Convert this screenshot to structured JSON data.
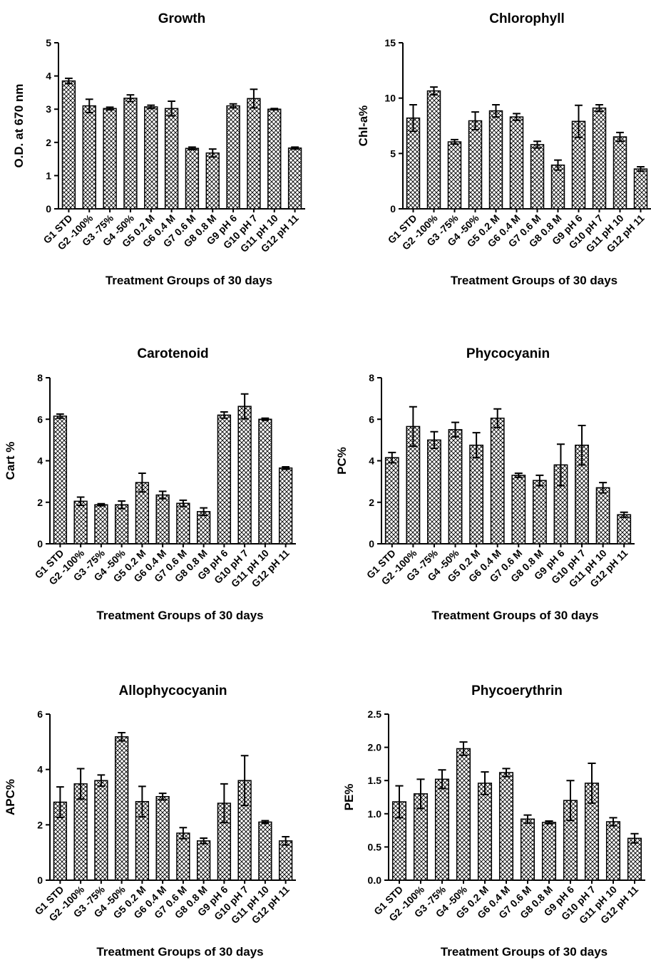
{
  "chart_data": [
    {
      "type": "bar",
      "title": "Growth",
      "xlabel": "Treatment Groups of 30 days",
      "ylabel": "O.D. at 670 nm",
      "ylim": [
        0,
        5
      ],
      "yticks": [
        "0",
        "1",
        "2",
        "3",
        "4",
        "5"
      ],
      "categories": [
        "G1 STD",
        "G2 -100%",
        "G3 -75%",
        "G4 -50%",
        "G5 0.2 M",
        "G6 0.4 M",
        "G7 0.6 M",
        "G8 0.8 M",
        "G9 pH 6",
        "G10 pH 7",
        "G11 pH 10",
        "G12 pH 11"
      ],
      "values": [
        3.85,
        3.1,
        3.02,
        3.33,
        3.07,
        3.02,
        1.82,
        1.68,
        3.1,
        3.32,
        3.0,
        1.83
      ],
      "errors": [
        0.08,
        0.2,
        0.04,
        0.1,
        0.05,
        0.22,
        0.04,
        0.12,
        0.06,
        0.28,
        0.02,
        0.03
      ]
    },
    {
      "type": "bar",
      "title": "Chlorophyll",
      "xlabel": "Treatment Groups of 30 days",
      "ylabel": "Chl-a%",
      "ylim": [
        0,
        15
      ],
      "yticks": [
        "0",
        "5",
        "10",
        "15"
      ],
      "categories": [
        "G1 STD",
        "G2 -100%",
        "G3 -75%",
        "G4 -50%",
        "G5 0.2 M",
        "G6 0.4 M",
        "G7 0.6 M",
        "G8 0.8 M",
        "G9 pH 6",
        "G10 pH 7",
        "G11 pH 10",
        "G12 pH 11"
      ],
      "values": [
        8.2,
        10.65,
        6.05,
        7.95,
        8.85,
        8.3,
        5.8,
        3.95,
        7.9,
        9.1,
        6.5,
        3.6
      ],
      "errors": [
        1.2,
        0.35,
        0.2,
        0.8,
        0.55,
        0.3,
        0.3,
        0.45,
        1.45,
        0.3,
        0.4,
        0.2
      ]
    },
    {
      "type": "bar",
      "title": "Carotenoid",
      "xlabel": "Treatment Groups of 30 days",
      "ylabel": "Cart %",
      "ylim": [
        0,
        8
      ],
      "yticks": [
        "0",
        "2",
        "4",
        "6",
        "8"
      ],
      "categories": [
        "G1 STD",
        "G2 -100%",
        "G3 -75%",
        "G4 -50%",
        "G5 0.2 M",
        "G6 0.4 M",
        "G7 0.6 M",
        "G8 0.8 M",
        "G9 pH 6",
        "G10 pH 7",
        "G11 pH 10",
        "G12 pH 11"
      ],
      "values": [
        6.15,
        2.05,
        1.88,
        1.88,
        2.95,
        2.35,
        1.95,
        1.55,
        6.2,
        6.62,
        6.0,
        3.65
      ],
      "errors": [
        0.1,
        0.2,
        0.05,
        0.18,
        0.45,
        0.18,
        0.15,
        0.18,
        0.15,
        0.6,
        0.05,
        0.06
      ]
    },
    {
      "type": "bar",
      "title": "Phycocyanin",
      "xlabel": "Treatment Groups of 30 days",
      "ylabel": "PC%",
      "ylim": [
        0,
        8
      ],
      "yticks": [
        "0",
        "2",
        "4",
        "6",
        "8"
      ],
      "categories": [
        "G1 STD",
        "G2 -100%",
        "G3 -75%",
        "G4 -50%",
        "G5 0.2 M",
        "G6 0.4 M",
        "G7 0.6 M",
        "G8 0.8 M",
        "G9 pH 6",
        "G10 pH 7",
        "G11 pH 10",
        "G12 pH 11"
      ],
      "values": [
        4.15,
        5.65,
        5.0,
        5.5,
        4.75,
        6.05,
        3.3,
        3.05,
        3.8,
        4.75,
        2.7,
        1.4
      ],
      "errors": [
        0.25,
        0.95,
        0.4,
        0.35,
        0.6,
        0.45,
        0.1,
        0.25,
        1.0,
        0.95,
        0.25,
        0.12
      ]
    },
    {
      "type": "bar",
      "title": "Allophycocyanin",
      "xlabel": "Treatment Groups of 30 days",
      "ylabel": "APC%",
      "ylim": [
        0,
        6
      ],
      "yticks": [
        "0",
        "2",
        "4",
        "6"
      ],
      "categories": [
        "G1 STD",
        "G2 -100%",
        "G3 -75%",
        "G4 -50%",
        "G5 0.2 M",
        "G6 0.4 M",
        "G7 0.6 M",
        "G8 0.8 M",
        "G9 pH 6",
        "G10 pH 7",
        "G11 pH 10",
        "G12 pH 11"
      ],
      "values": [
        2.82,
        3.48,
        3.6,
        5.18,
        2.84,
        3.02,
        1.7,
        1.42,
        2.78,
        3.6,
        2.1,
        1.42
      ],
      "errors": [
        0.55,
        0.55,
        0.2,
        0.15,
        0.55,
        0.12,
        0.2,
        0.1,
        0.7,
        0.9,
        0.05,
        0.15
      ]
    },
    {
      "type": "bar",
      "title": "Phycoerythrin",
      "xlabel": "Treatment Groups of 30 days",
      "ylabel": "PE%",
      "ylim": [
        0,
        2.5
      ],
      "yticks": [
        "0.0",
        "0.5",
        "1.0",
        "1.5",
        "2.0",
        "2.5"
      ],
      "categories": [
        "G1 STD",
        "G2 -100%",
        "G3 -75%",
        "G4 -50%",
        "G5 0.2 M",
        "G6 0.4 M",
        "G7 0.6 M",
        "G8 0.8 M",
        "G9 pH 6",
        "G10 pH 7",
        "G11 pH 10",
        "G12 pH 11"
      ],
      "values": [
        1.18,
        1.3,
        1.52,
        1.98,
        1.46,
        1.62,
        0.92,
        0.87,
        1.2,
        1.46,
        0.88,
        0.63
      ],
      "errors": [
        0.24,
        0.22,
        0.14,
        0.1,
        0.17,
        0.06,
        0.06,
        0.02,
        0.3,
        0.3,
        0.06,
        0.07
      ]
    }
  ]
}
